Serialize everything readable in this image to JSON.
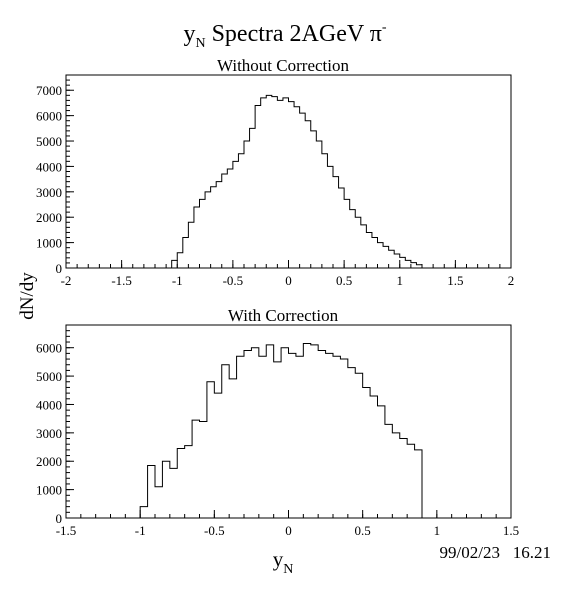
{
  "figure": {
    "title_main": "y",
    "title_sub": "N",
    "title_rest": " Spectra 2AGeV  π",
    "title_sup": "-",
    "ylabel": "dN/dy",
    "xlabel_main": "y",
    "xlabel_sub": "N",
    "timestamp": "99/02/23   16.21"
  },
  "chart_data": [
    {
      "type": "histogram",
      "title": "Without Correction",
      "xlim": [
        -2,
        2
      ],
      "ylim": [
        0,
        7600
      ],
      "xticks": [
        -2,
        -1.5,
        -1,
        -0.5,
        0,
        0.5,
        1,
        1.5,
        2
      ],
      "xtick_labels": [
        "-2",
        "-1.5",
        "-1",
        "-0.5",
        "0",
        "0.5",
        "1",
        "1.5",
        "2"
      ],
      "yticks": [
        0,
        1000,
        2000,
        3000,
        4000,
        5000,
        6000,
        7000
      ],
      "ytick_labels": [
        "0",
        "1000",
        "2000",
        "3000",
        "4000",
        "5000",
        "6000",
        "7000"
      ],
      "bin_start": -1.05,
      "bin_width": 0.05,
      "values": [
        300,
        600,
        1200,
        1800,
        2400,
        2700,
        3000,
        3200,
        3400,
        3700,
        3900,
        4200,
        4500,
        5000,
        5500,
        6400,
        6700,
        6800,
        6750,
        6600,
        6700,
        6550,
        6350,
        6100,
        5800,
        5400,
        5000,
        4500,
        4000,
        3600,
        3150,
        2700,
        2300,
        2000,
        1700,
        1400,
        1200,
        1000,
        850,
        700,
        550,
        420,
        300,
        210,
        130
      ]
    },
    {
      "type": "histogram",
      "title": "With Correction",
      "xlim": [
        -1.5,
        1.5
      ],
      "ylim": [
        0,
        6800
      ],
      "xticks": [
        -1.5,
        -1,
        -0.5,
        0,
        0.5,
        1,
        1.5
      ],
      "xtick_labels": [
        "-1.5",
        "-1",
        "-0.5",
        "0",
        "0.5",
        "1",
        "1.5"
      ],
      "yticks": [
        0,
        1000,
        2000,
        3000,
        4000,
        5000,
        6000
      ],
      "ytick_labels": [
        "0",
        "1000",
        "2000",
        "3000",
        "4000",
        "5000",
        "6000"
      ],
      "bin_start": -1.0,
      "bin_width": 0.05,
      "values": [
        400,
        1850,
        1100,
        2000,
        1750,
        2450,
        2550,
        3450,
        3400,
        4800,
        4400,
        5400,
        4900,
        5700,
        5900,
        6000,
        5700,
        6100,
        5500,
        6000,
        5800,
        5700,
        6150,
        6100,
        5900,
        5800,
        5700,
        5600,
        5300,
        5100,
        4600,
        4300,
        3950,
        3300,
        3000,
        2800,
        2600,
        2400,
        0
      ]
    }
  ]
}
